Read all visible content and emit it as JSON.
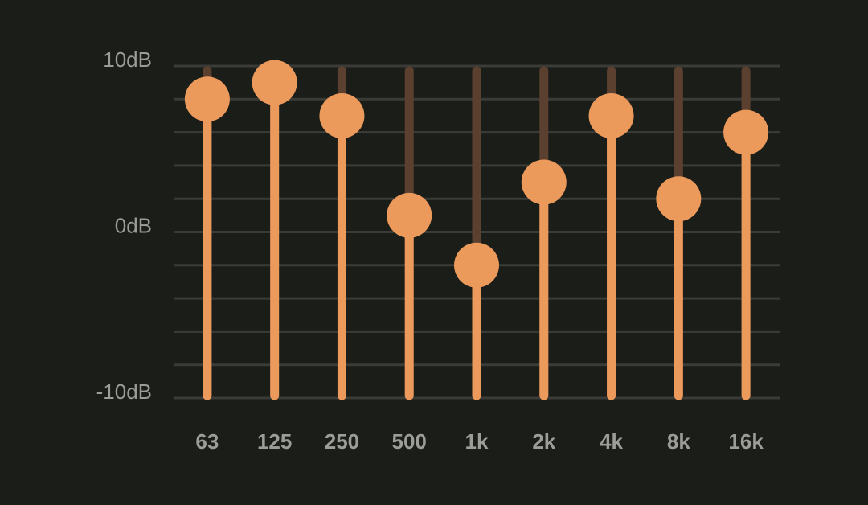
{
  "chart_data": {
    "type": "equalizer",
    "categories": [
      "63",
      "125",
      "250",
      "500",
      "1k",
      "2k",
      "4k",
      "8k",
      "16k"
    ],
    "values": [
      8,
      9,
      7,
      1,
      -2,
      3,
      7,
      2,
      6
    ],
    "color": "#ec9a5c",
    "track_color": "#5b4030",
    "ylim": [
      -10,
      10
    ],
    "yticks": [
      {
        "value": 10,
        "label": "10dB"
      },
      {
        "value": 0,
        "label": "0dB"
      },
      {
        "value": -10,
        "label": "-10dB"
      }
    ],
    "yminorticks": [
      8,
      6,
      4,
      2,
      -2,
      -4,
      -6,
      -8
    ],
    "grid": true
  }
}
